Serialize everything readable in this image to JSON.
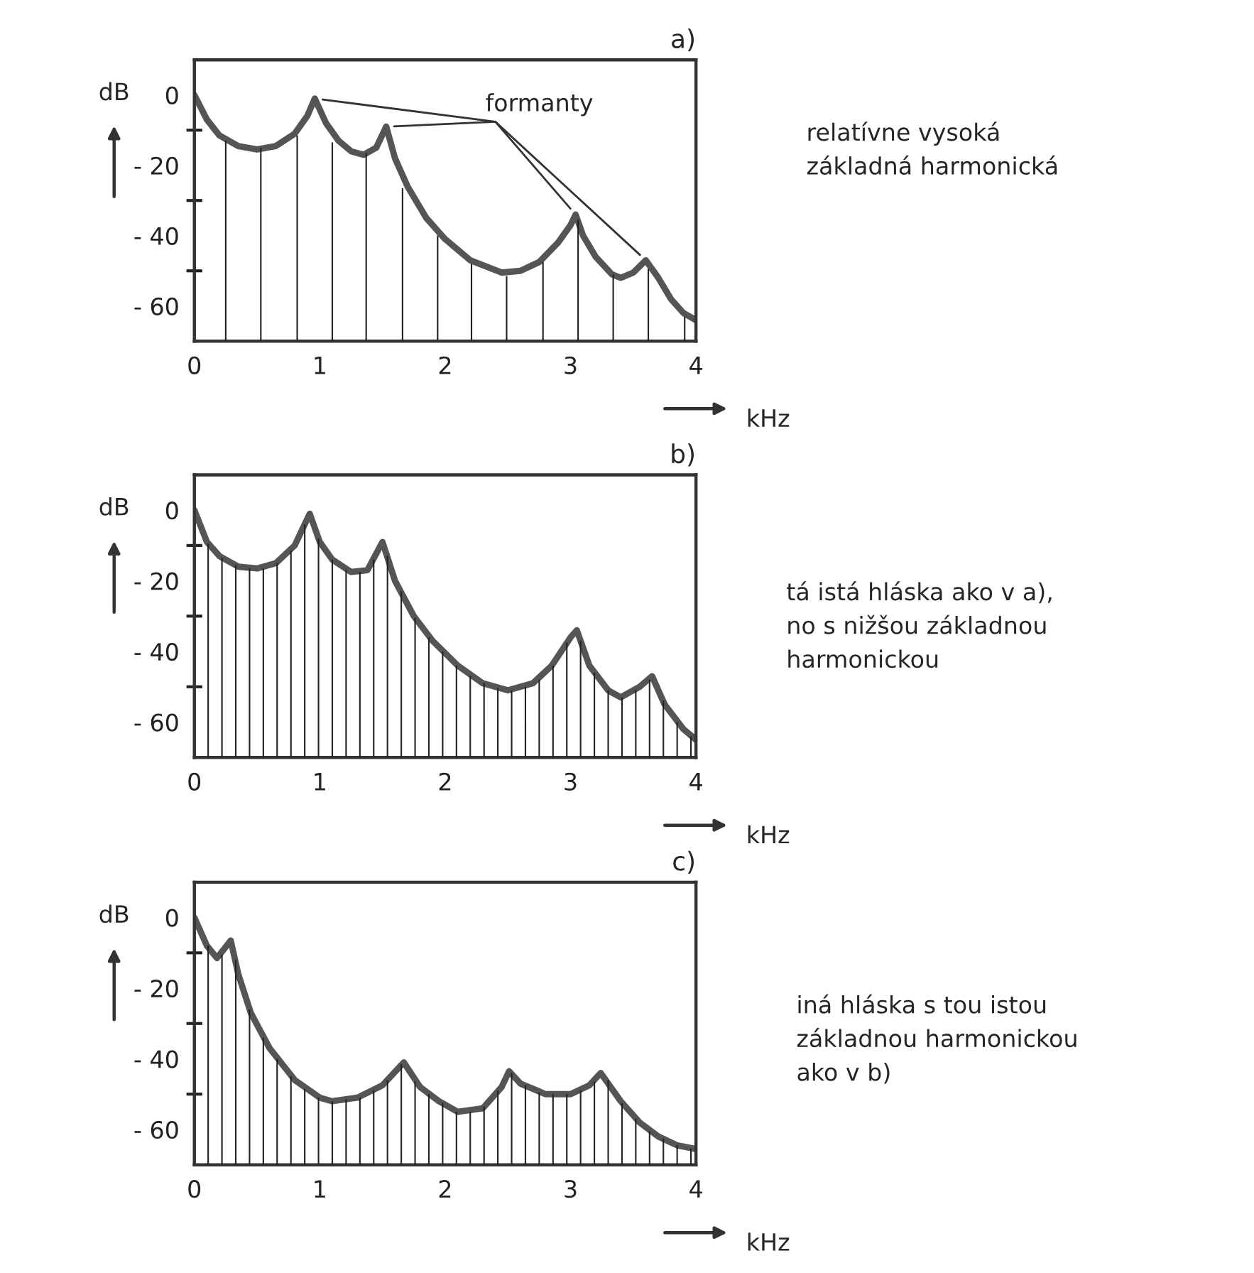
{
  "chart_data": [
    {
      "type": "line",
      "title": "a)",
      "xlabel": "kHz",
      "ylabel": "dB",
      "xlim": [
        0,
        4
      ],
      "ylim": [
        -70,
        10
      ],
      "xticks": [
        0,
        1,
        2,
        3,
        4
      ],
      "yticks": [
        {
          "value": 0,
          "label": "0"
        },
        {
          "value": -10,
          "label": null
        },
        {
          "value": -20,
          "label": "- 20"
        },
        {
          "value": -30,
          "label": null
        },
        {
          "value": -40,
          "label": "- 40"
        },
        {
          "value": -50,
          "label": null
        },
        {
          "value": -60,
          "label": "- 60"
        }
      ],
      "grid": false,
      "series": [
        {
          "color": "#555555",
          "x": [
            0,
            0.1,
            0.2,
            0.35,
            0.5,
            0.65,
            0.8,
            0.9,
            0.96,
            1.05,
            1.15,
            1.25,
            1.35,
            1.45,
            1.53,
            1.6,
            1.7,
            1.85,
            2.0,
            2.2,
            2.45,
            2.6,
            2.75,
            2.9,
            3.0,
            3.04,
            3.1,
            3.2,
            3.33,
            3.4,
            3.5,
            3.6,
            3.7,
            3.8,
            3.9,
            4.0
          ],
          "values": [
            0,
            -7,
            -11.5,
            -14.5,
            -15.5,
            -14.5,
            -11,
            -6,
            -1,
            -8,
            -13,
            -16,
            -17,
            -15,
            -9,
            -18,
            -26,
            -35,
            -41,
            -47,
            -50.5,
            -50,
            -47.5,
            -42,
            -37,
            -34,
            -40,
            -46,
            -51,
            -52,
            -50.5,
            -47,
            -52,
            -58,
            -62,
            -64
          ]
        },
        {
          "type": "bar",
          "color": "#222222",
          "x": [
            0.25,
            0.53,
            0.82,
            1.1,
            1.37,
            1.66,
            1.94,
            2.21,
            2.49,
            2.78,
            3.06,
            3.34,
            3.62,
            3.91
          ],
          "base": [
            -70,
            -70,
            -70,
            -70,
            -70,
            -70,
            -70,
            -70,
            -70,
            -70,
            -70,
            -70,
            -70,
            -70
          ],
          "values": [
            57,
            55,
            58.5,
            56.5,
            53.5,
            43.5,
            30,
            22,
            18.5,
            22.5,
            34.5,
            19,
            20.5,
            7
          ]
        }
      ],
      "annotations": [
        {
          "text": "formanty",
          "x": 0.96,
          "y": -1
        },
        "relatívne vysoká\nzákladná harmonická"
      ]
    },
    {
      "type": "line",
      "title": "b)",
      "xlabel": "kHz",
      "ylabel": "dB",
      "xlim": [
        0,
        4
      ],
      "ylim": [
        -70,
        10
      ],
      "xticks": [
        0,
        1,
        2,
        3,
        4
      ],
      "yticks": [
        {
          "value": 0,
          "label": "0"
        },
        {
          "value": -10,
          "label": null
        },
        {
          "value": -20,
          "label": "- 20"
        },
        {
          "value": -30,
          "label": null
        },
        {
          "value": -40,
          "label": "- 40"
        },
        {
          "value": -50,
          "label": null
        },
        {
          "value": -60,
          "label": "- 60"
        }
      ],
      "grid": false,
      "series": [
        {
          "color": "#555555",
          "x": [
            0,
            0.1,
            0.2,
            0.35,
            0.5,
            0.65,
            0.8,
            0.92,
            1.0,
            1.1,
            1.25,
            1.38,
            1.5,
            1.6,
            1.75,
            1.9,
            2.1,
            2.3,
            2.5,
            2.7,
            2.85,
            3.0,
            3.05,
            3.15,
            3.3,
            3.4,
            3.55,
            3.65,
            3.75,
            3.9,
            4.0
          ],
          "values": [
            0,
            -9,
            -13,
            -16,
            -16.5,
            -15,
            -10,
            -1,
            -9,
            -14,
            -17.5,
            -17,
            -9,
            -20,
            -30,
            -37,
            -44,
            -49,
            -51,
            -49,
            -44,
            -36,
            -34,
            -44,
            -51,
            -53,
            -50,
            -47,
            -55,
            -62,
            -65
          ]
        },
        {
          "type": "bar",
          "color": "#222222",
          "x": [
            0.11,
            0.22,
            0.33,
            0.44,
            0.55,
            0.66,
            0.77,
            0.88,
            0.99,
            1.1,
            1.21,
            1.32,
            1.43,
            1.54,
            1.65,
            1.76,
            1.87,
            1.98,
            2.09,
            2.2,
            2.31,
            2.42,
            2.53,
            2.64,
            2.75,
            2.86,
            2.97,
            3.08,
            3.19,
            3.3,
            3.41,
            3.52,
            3.63,
            3.74,
            3.85,
            3.96
          ],
          "base": [
            -70,
            -70,
            -70,
            -70,
            -70,
            -70,
            -70,
            -70,
            -70,
            -70,
            -70,
            -70,
            -70,
            -70,
            -70,
            -70,
            -70,
            -70,
            -70,
            -70,
            -70,
            -70,
            -70,
            -70,
            -70,
            -70,
            -70,
            -70,
            -70,
            -70,
            -70,
            -70,
            -70,
            -70,
            -70,
            -70
          ],
          "values": [
            60.5,
            56.5,
            54.5,
            53.5,
            53.5,
            55,
            58.5,
            66,
            62,
            56,
            53,
            52.5,
            56,
            57,
            47,
            39.5,
            34,
            30,
            26,
            23,
            21,
            19.5,
            19,
            20,
            22,
            26,
            32.5,
            33,
            24,
            19,
            17,
            19,
            22,
            16,
            10,
            6
          ]
        }
      ],
      "annotations": [
        "tá istá hláska ako v a),\nno s nižšou základnou\nharmonickou"
      ]
    },
    {
      "type": "line",
      "title": "c)",
      "xlabel": "kHz",
      "ylabel": "dB",
      "xlim": [
        0,
        4
      ],
      "ylim": [
        -70,
        10
      ],
      "xticks": [
        0,
        1,
        2,
        3,
        4
      ],
      "yticks": [
        {
          "value": 0,
          "label": "0"
        },
        {
          "value": -10,
          "label": null
        },
        {
          "value": -20,
          "label": "- 20"
        },
        {
          "value": -30,
          "label": null
        },
        {
          "value": -40,
          "label": "- 40"
        },
        {
          "value": -50,
          "label": null
        },
        {
          "value": -60,
          "label": "- 60"
        }
      ],
      "grid": false,
      "series": [
        {
          "color": "#555555",
          "x": [
            0,
            0.1,
            0.18,
            0.29,
            0.35,
            0.45,
            0.6,
            0.8,
            1.0,
            1.1,
            1.3,
            1.5,
            1.67,
            1.8,
            1.95,
            2.1,
            2.3,
            2.45,
            2.51,
            2.6,
            2.8,
            3.0,
            3.15,
            3.24,
            3.4,
            3.55,
            3.7,
            3.85,
            4.0
          ],
          "values": [
            0,
            -8,
            -11.5,
            -6.5,
            -16,
            -27,
            -37,
            -46,
            -51,
            -52,
            -51,
            -47.5,
            -41,
            -48,
            -52,
            -55,
            -54,
            -48,
            -43.5,
            -47,
            -50,
            -50,
            -47.5,
            -44,
            -52,
            -58,
            -62,
            -64.5,
            -65.5
          ]
        },
        {
          "type": "bar",
          "color": "#222222",
          "x": [
            0.11,
            0.22,
            0.33,
            0.44,
            0.55,
            0.66,
            0.77,
            0.88,
            0.99,
            1.1,
            1.21,
            1.32,
            1.43,
            1.54,
            1.65,
            1.76,
            1.87,
            1.98,
            2.09,
            2.2,
            2.31,
            2.42,
            2.53,
            2.64,
            2.75,
            2.86,
            2.97,
            3.08,
            3.19,
            3.3,
            3.41,
            3.52,
            3.63,
            3.74,
            3.85,
            3.96
          ],
          "base": [
            -70,
            -70,
            -70,
            -70,
            -70,
            -70,
            -70,
            -70,
            -70,
            -70,
            -70,
            -70,
            -70,
            -70,
            -70,
            -70,
            -70,
            -70,
            -70,
            -70,
            -70,
            -70,
            -70,
            -70,
            -70,
            -70,
            -70,
            -70,
            -70,
            -70,
            -70,
            -70,
            -70,
            -70,
            -70,
            -70
          ],
          "values": [
            62,
            59.5,
            58,
            44,
            36,
            30,
            25,
            21.5,
            19,
            18,
            18.5,
            19,
            21,
            24,
            28.5,
            23.5,
            20,
            17.5,
            15,
            15,
            16.5,
            21,
            26,
            22.5,
            20.5,
            20,
            20,
            21,
            23.5,
            24,
            17.5,
            13,
            9.5,
            7.5,
            5.5,
            4.5
          ]
        }
      ],
      "annotations": [
        "iná hláska s tou istou\nzákladnou harmonickou\nako v b)"
      ]
    }
  ]
}
